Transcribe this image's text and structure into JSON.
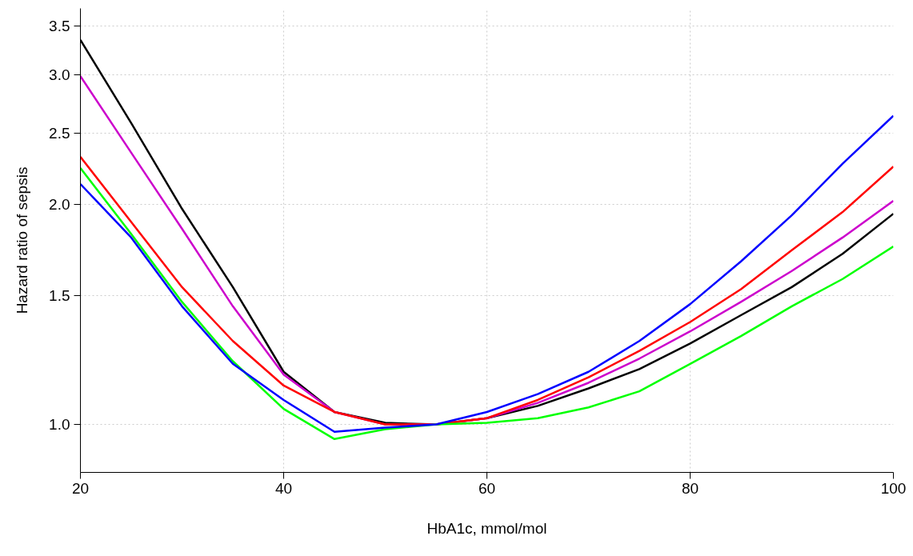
{
  "chart_data": {
    "type": "line",
    "xlabel": "HbA1c, mmol/mol",
    "ylabel": "Hazard ratio of sepsis",
    "log": "y",
    "grid": true,
    "marker": "none",
    "line_style": "solid",
    "x": [
      20,
      25,
      30,
      35,
      40,
      45,
      50,
      55,
      60,
      65,
      70,
      75,
      80,
      85,
      90,
      95,
      100
    ],
    "xlim": [
      20,
      100
    ],
    "xticks": [
      20,
      40,
      60,
      80,
      100
    ],
    "ylim": [
      0.86,
      3.7
    ],
    "yticks": [
      {
        "value": 1.0,
        "label": "1.0"
      },
      1.5,
      {
        "value": 2.0,
        "label": "2.0"
      },
      2.5,
      {
        "value": 3.0,
        "label": "3.0"
      },
      3.5
    ],
    "series": [
      {
        "color": "#000000",
        "values": [
          3.35,
          2.58,
          1.97,
          1.54,
          1.18,
          1.04,
          1.005,
          1.0,
          1.02,
          1.06,
          1.12,
          1.19,
          1.29,
          1.41,
          1.54,
          1.71,
          1.94
        ]
      },
      {
        "color": "#cc00cc",
        "values": [
          2.99,
          2.35,
          1.85,
          1.45,
          1.17,
          1.04,
          1.0,
          1.0,
          1.02,
          1.07,
          1.14,
          1.23,
          1.34,
          1.47,
          1.62,
          1.8,
          2.02
        ]
      },
      {
        "color": "#ff0000",
        "values": [
          2.32,
          1.89,
          1.54,
          1.3,
          1.13,
          1.04,
          1.0,
          1.0,
          1.02,
          1.08,
          1.16,
          1.26,
          1.38,
          1.53,
          1.73,
          1.95,
          2.25
        ]
      },
      {
        "color": "#00ff00",
        "values": [
          2.24,
          1.82,
          1.47,
          1.22,
          1.05,
          0.955,
          0.985,
          1.0,
          1.005,
          1.02,
          1.055,
          1.11,
          1.21,
          1.32,
          1.45,
          1.58,
          1.75
        ]
      },
      {
        "color": "#0000ff",
        "values": [
          2.13,
          1.8,
          1.45,
          1.21,
          1.08,
          0.977,
          0.99,
          1.0,
          1.04,
          1.1,
          1.18,
          1.3,
          1.46,
          1.67,
          1.93,
          2.27,
          2.64
        ]
      }
    ]
  }
}
